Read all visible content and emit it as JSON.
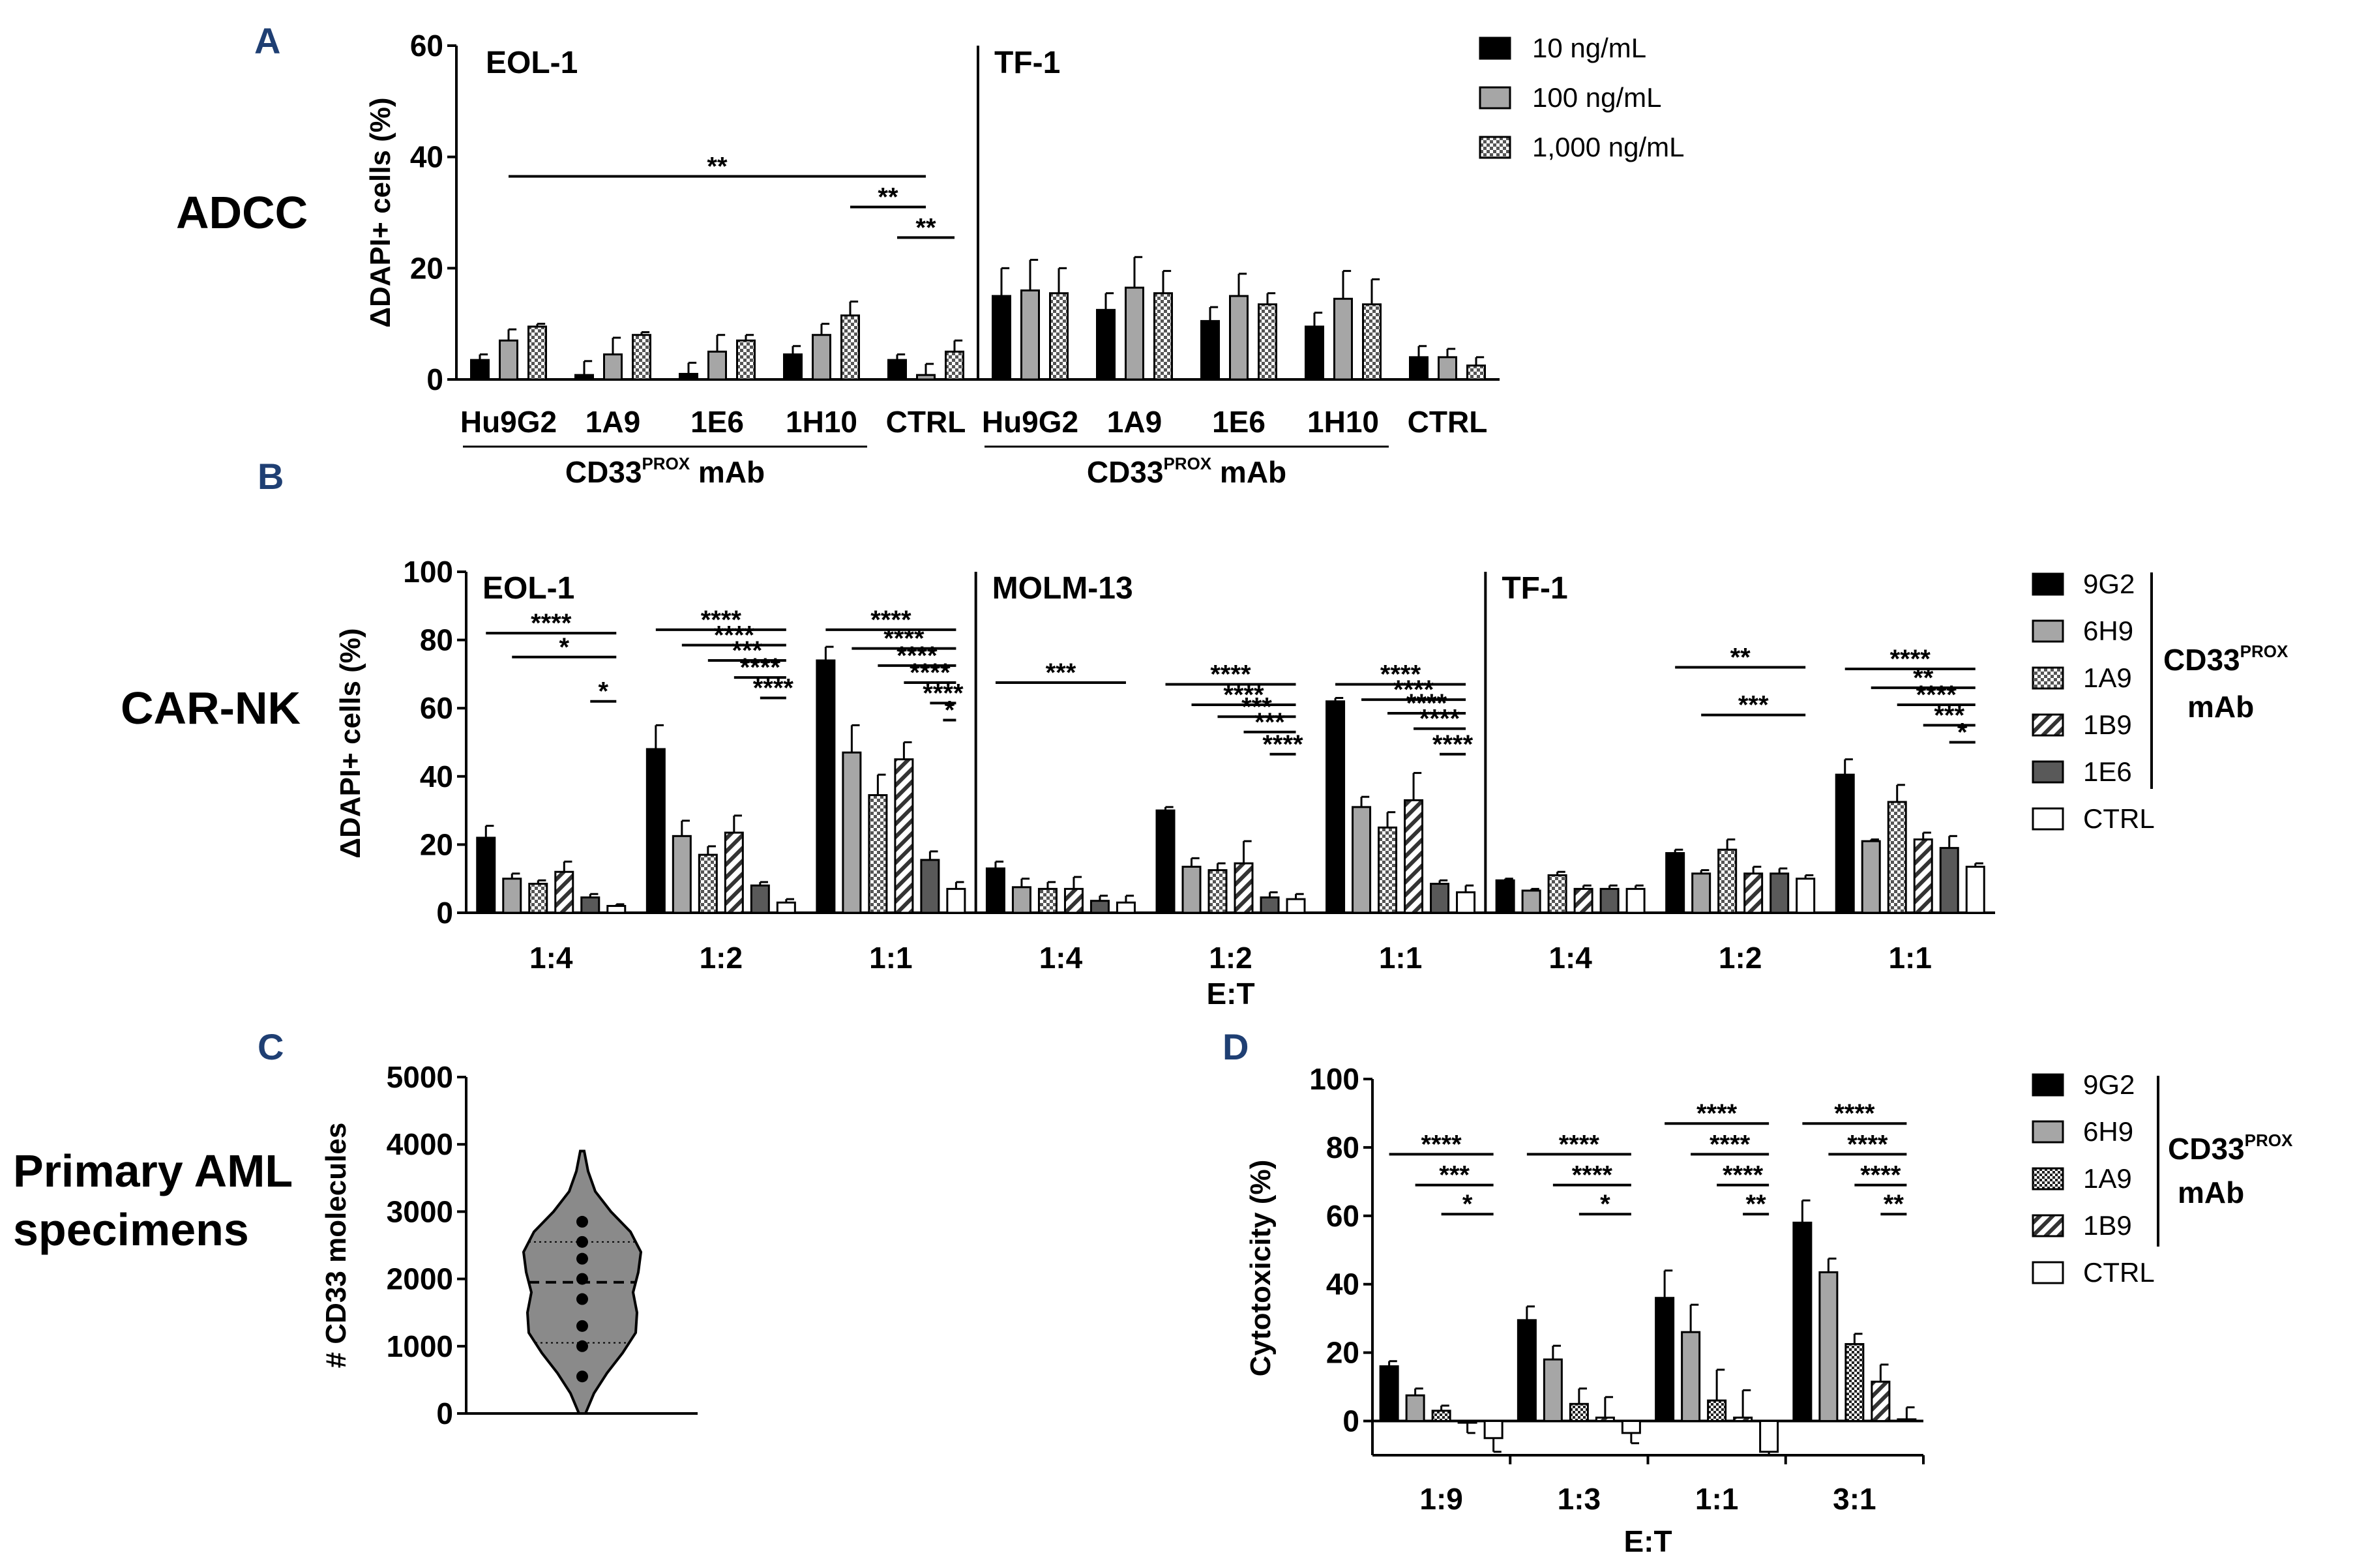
{
  "colors": {
    "panel_label": "#1f3f73",
    "black": "#000000",
    "gray": "#a6a6a6",
    "dark_gray": "#595959",
    "white": "#ffffff",
    "violin_fill": "#8a8a8a"
  },
  "panels": {
    "A": {
      "label": "A",
      "section_title": "ADCC"
    },
    "B": {
      "label": "B",
      "section_title": "CAR-NK"
    },
    "C": {
      "label": "C",
      "section_title_line1": "Primary AML",
      "section_title_line2": "specimens"
    },
    "D": {
      "label": "D"
    }
  },
  "chart_data": [
    {
      "id": "A",
      "type": "bar",
      "ylabel": "ΔDAPI+ cells (%)",
      "ylim": [
        0,
        60
      ],
      "yticks": [
        0,
        20,
        40,
        60
      ],
      "cell_lines": [
        "EOL-1",
        "TF-1"
      ],
      "groups_per_cell_line": [
        "Hu9G2",
        "1A9",
        "1E6",
        "1H10",
        "CTRL"
      ],
      "bracket_label_main": "CD33",
      "bracket_label_sup": "PROX",
      "bracket_label_end": " mAb",
      "legend": [
        {
          "name": "10 ng/mL",
          "pattern": "black"
        },
        {
          "name": "100 ng/mL",
          "pattern": "gray"
        },
        {
          "name": "1,000 ng/mL",
          "pattern": "dots"
        }
      ],
      "series": [
        {
          "name": "10 ng/mL",
          "values": [
            3.5,
            0.8,
            1.0,
            4.5,
            3.5,
            15,
            12.5,
            10.5,
            9.5,
            4
          ],
          "errors": [
            1,
            2.5,
            2,
            1.5,
            1,
            5,
            3,
            2.5,
            2.5,
            2
          ]
        },
        {
          "name": "100 ng/mL",
          "values": [
            7,
            4.5,
            5,
            8,
            0.8,
            16,
            16.5,
            15,
            14.5,
            4
          ],
          "errors": [
            2,
            3,
            3,
            2,
            2,
            5.5,
            5.5,
            4,
            5,
            1.5
          ]
        },
        {
          "name": "1,000 ng/mL",
          "values": [
            9.5,
            8,
            7,
            11.5,
            5,
            15.5,
            15.5,
            13.5,
            13.5,
            2.5
          ],
          "errors": [
            0.5,
            0.5,
            1,
            2.5,
            2,
            4.5,
            4,
            2,
            4.5,
            1.5
          ]
        }
      ],
      "significance": [
        {
          "text": "**",
          "from_bar": 1,
          "to_bar": 13,
          "y": 36.5
        },
        {
          "text": "**",
          "from_bar": 11,
          "to_bar": 13,
          "y": 31
        },
        {
          "text": "**",
          "from_bar": 12,
          "to_bar": 14,
          "y": 25.5
        }
      ]
    },
    {
      "id": "B",
      "type": "bar",
      "ylabel": "ΔDAPI+ cells (%)",
      "xlabel": "E:T",
      "ylim": [
        0,
        100
      ],
      "yticks": [
        0,
        20,
        40,
        60,
        80,
        100
      ],
      "cell_lines": [
        "EOL-1",
        "MOLM-13",
        "TF-1"
      ],
      "categories": [
        "1:4",
        "1:2",
        "1:1",
        "1:4",
        "1:2",
        "1:1",
        "1:4",
        "1:2",
        "1:1"
      ],
      "legend_bracket_main": "CD33",
      "legend_bracket_sup": "PROX",
      "legend_bracket_line2": "mAb",
      "legend": [
        {
          "name": "9G2",
          "pattern": "black"
        },
        {
          "name": "6H9",
          "pattern": "gray"
        },
        {
          "name": "1A9",
          "pattern": "dots"
        },
        {
          "name": "1B9",
          "pattern": "stripes"
        },
        {
          "name": "1E6",
          "pattern": "darkgray"
        },
        {
          "name": "CTRL",
          "pattern": "white"
        }
      ],
      "series": [
        {
          "name": "9G2",
          "values": [
            22,
            48,
            74,
            13,
            30,
            62,
            9.5,
            17.5,
            40.5
          ],
          "errors": [
            3.5,
            7,
            4,
            2,
            1,
            1,
            0.5,
            1,
            4.5
          ]
        },
        {
          "name": "6H9",
          "values": [
            10,
            22.5,
            47,
            7.5,
            13.5,
            31,
            6.5,
            11.5,
            21
          ],
          "errors": [
            1.5,
            4.5,
            8,
            2.5,
            2.5,
            3,
            0.5,
            1,
            0.5
          ]
        },
        {
          "name": "1A9",
          "values": [
            8.5,
            17,
            34.5,
            7,
            12.5,
            25,
            11,
            18.5,
            32.5
          ],
          "errors": [
            1,
            2.5,
            6,
            2,
            2,
            4.5,
            1,
            3,
            5
          ]
        },
        {
          "name": "1B9",
          "values": [
            12,
            23.5,
            45,
            7,
            14.5,
            33,
            7,
            11.5,
            21.5
          ],
          "errors": [
            3,
            5,
            5,
            3.5,
            6.5,
            8,
            1,
            2,
            2
          ]
        },
        {
          "name": "1E6",
          "values": [
            4.5,
            8,
            15.5,
            3.5,
            4.5,
            8.5,
            7,
            11.5,
            19
          ],
          "errors": [
            1,
            1,
            2.5,
            1.5,
            1.5,
            1,
            1,
            1.5,
            3.5
          ]
        },
        {
          "name": "CTRL",
          "values": [
            2,
            3,
            7,
            3,
            4,
            6,
            7,
            10,
            13.5
          ],
          "errors": [
            0.5,
            1,
            2,
            2,
            1.5,
            2,
            1,
            1,
            1
          ]
        }
      ],
      "significance": [
        {
          "text": "****",
          "from_bar": 0,
          "to_bar": 5,
          "y": 82
        },
        {
          "text": "*",
          "from_bar": 1,
          "to_bar": 5,
          "y": 75
        },
        {
          "text": "*",
          "from_bar": 4,
          "to_bar": 5,
          "y": 62
        },
        {
          "text": "****",
          "from_bar": 6,
          "to_bar": 11,
          "y": 83
        },
        {
          "text": "****",
          "from_bar": 7,
          "to_bar": 11,
          "y": 78.5
        },
        {
          "text": "***",
          "from_bar": 8,
          "to_bar": 11,
          "y": 74
        },
        {
          "text": "****",
          "from_bar": 9,
          "to_bar": 11,
          "y": 69
        },
        {
          "text": "****",
          "from_bar": 10,
          "to_bar": 11,
          "y": 63
        },
        {
          "text": "****",
          "from_bar": 12,
          "to_bar": 17,
          "y": 83
        },
        {
          "text": "****",
          "from_bar": 13,
          "to_bar": 17,
          "y": 77.5
        },
        {
          "text": "****",
          "from_bar": 14,
          "to_bar": 17,
          "y": 72.5
        },
        {
          "text": "****",
          "from_bar": 15,
          "to_bar": 17,
          "y": 67.5
        },
        {
          "text": "****",
          "from_bar": 16,
          "to_bar": 17,
          "y": 61.5
        },
        {
          "text": "*",
          "from_bar": 16.5,
          "to_bar": 17,
          "y": 56.5
        },
        {
          "text": "***",
          "from_bar": 18,
          "to_bar": 23,
          "y": 67.5
        },
        {
          "text": "****",
          "from_bar": 24,
          "to_bar": 29,
          "y": 67
        },
        {
          "text": "****",
          "from_bar": 25,
          "to_bar": 29,
          "y": 61
        },
        {
          "text": "***",
          "from_bar": 26,
          "to_bar": 29,
          "y": 57.5
        },
        {
          "text": "***",
          "from_bar": 27,
          "to_bar": 29,
          "y": 53
        },
        {
          "text": "****",
          "from_bar": 28,
          "to_bar": 29,
          "y": 46.5
        },
        {
          "text": "****",
          "from_bar": 30,
          "to_bar": 35,
          "y": 67
        },
        {
          "text": "****",
          "from_bar": 31,
          "to_bar": 35,
          "y": 62.5
        },
        {
          "text": "****",
          "from_bar": 32,
          "to_bar": 35,
          "y": 58.5
        },
        {
          "text": "****",
          "from_bar": 33,
          "to_bar": 35,
          "y": 54
        },
        {
          "text": "****",
          "from_bar": 34,
          "to_bar": 35,
          "y": 46.5
        },
        {
          "text": "**",
          "from_bar": 42,
          "to_bar": 47,
          "y": 72
        },
        {
          "text": "***",
          "from_bar": 43,
          "to_bar": 47,
          "y": 58
        },
        {
          "text": "****",
          "from_bar": 48,
          "to_bar": 53,
          "y": 71.5
        },
        {
          "text": "**",
          "from_bar": 49,
          "to_bar": 53,
          "y": 66
        },
        {
          "text": "****",
          "from_bar": 50,
          "to_bar": 53,
          "y": 61
        },
        {
          "text": "***",
          "from_bar": 51,
          "to_bar": 53,
          "y": 55
        },
        {
          "text": "*",
          "from_bar": 52,
          "to_bar": 53,
          "y": 50
        }
      ]
    },
    {
      "id": "C",
      "type": "violin",
      "ylabel": "# CD33 molecules",
      "ylim": [
        0,
        5000
      ],
      "yticks": [
        0,
        1000,
        2000,
        3000,
        4000,
        5000
      ],
      "points": [
        550,
        1000,
        1300,
        1700,
        2000,
        2300,
        2550,
        2850
      ],
      "median": 1950,
      "quartiles": [
        1050,
        2550
      ],
      "range": [
        0,
        3900
      ]
    },
    {
      "id": "D",
      "type": "bar",
      "ylabel": "Cytotoxicity (%)",
      "xlabel": "E:T",
      "ylim": [
        -10,
        100
      ],
      "yticks": [
        0,
        20,
        40,
        60,
        80,
        100
      ],
      "categories": [
        "1:9",
        "1:3",
        "1:1",
        "3:1"
      ],
      "legend_bracket_main": "CD33",
      "legend_bracket_sup": "PROX",
      "legend_bracket_line2": "mAb",
      "legend": [
        {
          "name": "9G2",
          "pattern": "black"
        },
        {
          "name": "6H9",
          "pattern": "gray"
        },
        {
          "name": "1A9",
          "pattern": "checks"
        },
        {
          "name": "1B9",
          "pattern": "stripes"
        },
        {
          "name": "CTRL",
          "pattern": "white"
        }
      ],
      "series": [
        {
          "name": "9G2",
          "values": [
            16,
            29.5,
            36,
            58
          ],
          "errors": [
            1.5,
            4,
            8,
            6.5
          ]
        },
        {
          "name": "6H9",
          "values": [
            7.5,
            18,
            26,
            43.5
          ],
          "errors": [
            2,
            4,
            8,
            4
          ]
        },
        {
          "name": "1A9",
          "values": [
            3,
            5,
            6,
            22.5
          ],
          "errors": [
            1.5,
            4.5,
            9,
            3
          ]
        },
        {
          "name": "1B9",
          "values": [
            -0.5,
            1,
            1,
            11.5
          ],
          "errors": [
            3,
            6,
            8,
            5
          ]
        },
        {
          "name": "CTRL",
          "values": [
            -5,
            -3.5,
            -9,
            0.5
          ],
          "errors": [
            4,
            3,
            1,
            3.5
          ]
        }
      ],
      "significance": [
        {
          "text": "****",
          "from_bar": 0,
          "to_bar": 4,
          "y": 78
        },
        {
          "text": "***",
          "from_bar": 1,
          "to_bar": 4,
          "y": 69
        },
        {
          "text": "*",
          "from_bar": 2,
          "to_bar": 4,
          "y": 60.5
        },
        {
          "text": "****",
          "from_bar": 5,
          "to_bar": 9,
          "y": 78
        },
        {
          "text": "****",
          "from_bar": 6,
          "to_bar": 9,
          "y": 69
        },
        {
          "text": "*",
          "from_bar": 7,
          "to_bar": 9,
          "y": 60.5
        },
        {
          "text": "****",
          "from_bar": 10,
          "to_bar": 14,
          "y": 87
        },
        {
          "text": "****",
          "from_bar": 11,
          "to_bar": 14,
          "y": 78
        },
        {
          "text": "****",
          "from_bar": 12,
          "to_bar": 14,
          "y": 69
        },
        {
          "text": "**",
          "from_bar": 13,
          "to_bar": 14,
          "y": 60.5
        },
        {
          "text": "****",
          "from_bar": 15,
          "to_bar": 19,
          "y": 87
        },
        {
          "text": "****",
          "from_bar": 16,
          "to_bar": 19,
          "y": 78
        },
        {
          "text": "****",
          "from_bar": 17,
          "to_bar": 19,
          "y": 69
        },
        {
          "text": "**",
          "from_bar": 18,
          "to_bar": 19,
          "y": 60.5
        }
      ]
    }
  ]
}
